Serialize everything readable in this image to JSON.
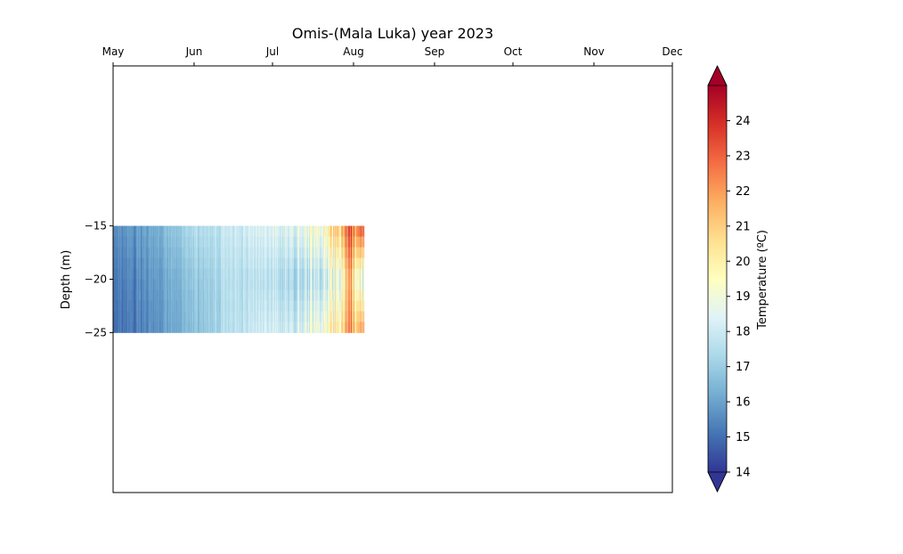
{
  "chart_data": {
    "type": "heatmap",
    "title": "Omis-(Mala Luka) year 2023",
    "xlabel": "",
    "ylabel": "Depth (m)",
    "x_ticks": [
      "May",
      "Jun",
      "Jul",
      "Aug",
      "Sep",
      "Oct",
      "Nov",
      "Dec"
    ],
    "x_axis_position": "top",
    "y_ticks": [
      -15,
      -20,
      -25
    ],
    "ylim": [
      -40,
      0
    ],
    "data_depth_range": [
      -25,
      -15
    ],
    "data_time_range": [
      "2023-05-01",
      "2023-08-05"
    ],
    "colorbar": {
      "label": "Temperature (ºC)",
      "range": [
        14,
        25
      ],
      "ticks": [
        14,
        15,
        16,
        17,
        18,
        19,
        20,
        21,
        22,
        23,
        24
      ],
      "extend": "both",
      "colormap": "RdYlBu_r"
    },
    "temperature_profile": {
      "description_dates": [
        "2023-05-01",
        "2023-05-15",
        "2023-06-01",
        "2023-06-15",
        "2023-07-01",
        "2023-07-10",
        "2023-07-20",
        "2023-07-26",
        "2023-07-31",
        "2023-08-05"
      ],
      "surface_15m": [
        15.6,
        16.0,
        17.4,
        18.0,
        18.4,
        18.6,
        19.6,
        21.2,
        23.4,
        23.0
      ],
      "mid_20m": [
        15.2,
        15.6,
        16.8,
        17.6,
        17.6,
        17.4,
        18.0,
        18.6,
        21.8,
        17.5
      ],
      "bottom_25m": [
        15.0,
        15.4,
        16.6,
        17.6,
        18.2,
        18.2,
        19.4,
        20.2,
        22.4,
        21.5
      ]
    }
  }
}
